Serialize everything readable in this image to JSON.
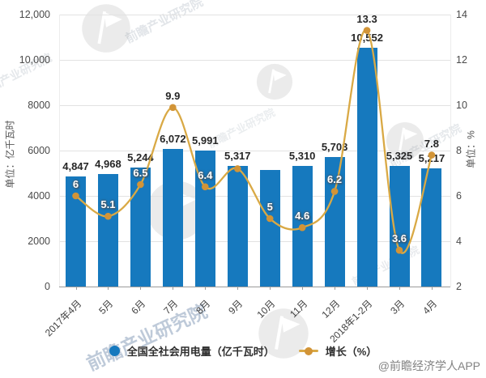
{
  "chart_data": {
    "type": "bar+line",
    "categories": [
      "2017年4月",
      "5月",
      "6月",
      "7月",
      "8月",
      "9月",
      "10月",
      "11月",
      "12月",
      "2018年1-2月",
      "3月",
      "4月"
    ],
    "series": [
      {
        "name": "全国全社会用电量（亿千瓦时）",
        "type": "bar",
        "y_axis": "left",
        "color": "#1679BE",
        "values": [
          4847,
          4968,
          5244,
          6072,
          5991,
          5317,
          5130,
          5310,
          5703,
          10552,
          5325,
          5217
        ],
        "labels": [
          "4,847",
          "4,968",
          "5,244",
          "6,072",
          "5,991",
          "5,317",
          "",
          "5,310",
          "5,703",
          "10,552",
          "5,325",
          "5,217"
        ]
      },
      {
        "name": "增长（%）",
        "type": "line",
        "y_axis": "right",
        "color": "#D9A945",
        "marker_color": "#D29437",
        "values": [
          6,
          5.1,
          6.5,
          9.9,
          6.4,
          7.2,
          5,
          4.6,
          6.2,
          13.3,
          3.6,
          7.8
        ],
        "labels": [
          "6",
          "5.1",
          "6.5",
          "9.9",
          "6.4",
          "",
          "5",
          "4.6",
          "6.2",
          "13.3",
          "3.6",
          "7.8"
        ],
        "label_variant": [
          "on-bar",
          "on-bar",
          "on-bar",
          "plain",
          "on-bar",
          "none",
          "on-bar",
          "on-bar",
          "on-bar",
          "plain",
          "on-bar",
          "plain"
        ]
      }
    ],
    "left_axis": {
      "title": "单位：亿千瓦时",
      "min": 0,
      "max": 12000,
      "tick_labels": [
        "12,000",
        "10,000",
        "8000",
        "6000",
        "4000",
        "2000",
        "0"
      ]
    },
    "right_axis": {
      "title": "单位：%",
      "min": 2,
      "max": 14,
      "tick_labels": [
        "14",
        "12",
        "10",
        "8",
        "6",
        "4",
        "2"
      ]
    },
    "grid": true,
    "legend_position": "bottom",
    "smooth_line": true
  },
  "legend": {
    "items": [
      {
        "label": "全国全社会用电量（亿千瓦时）",
        "marker": "circle",
        "color": "#1679BE"
      },
      {
        "label": "增长（%）",
        "marker": "line-dot",
        "color": "#D9A945"
      }
    ]
  },
  "credit": "@前瞻经济学人APP",
  "watermark": {
    "text": "前瞻产业研究院"
  }
}
